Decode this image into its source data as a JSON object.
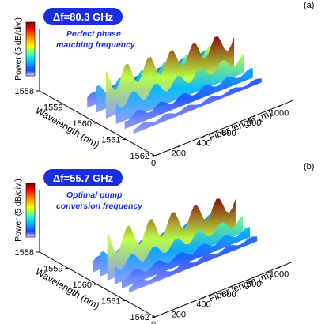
{
  "chart_data": [
    {
      "type": "surface-3d",
      "panel_label": "(a)",
      "badge": "Δf=80.3 GHz",
      "annotation": [
        "Perfect phase",
        "matching frequency"
      ],
      "colorbar_label": "Power (5 dB/div.)",
      "xlabel": "Fiber length (m)",
      "ylabel": "Wavelength (nm)",
      "x_ticks": [
        "0",
        "200",
        "400",
        "600",
        "800",
        "1000"
      ],
      "y_ticks": [
        "1558",
        "1559",
        "1560",
        "1561",
        "1562"
      ],
      "xlim": [
        0,
        1100
      ],
      "ylim": [
        1558,
        1562
      ],
      "ridges": [
        {
          "wavelength": 1559.3,
          "level": 0.28
        },
        {
          "wavelength": 1559.6,
          "level": 0.55
        },
        {
          "wavelength": 1559.95,
          "level": 1.0
        },
        {
          "wavelength": 1560.3,
          "level": 0.55
        },
        {
          "wavelength": 1560.6,
          "level": 0.28
        },
        {
          "wavelength": 1560.9,
          "level": 0.15
        }
      ]
    },
    {
      "type": "surface-3d",
      "panel_label": "(b)",
      "badge": "Δf=55.7 GHz",
      "annotation": [
        "Optimal pump",
        "conversion frequency"
      ],
      "colorbar_label": "Power (5 dB/div.)",
      "xlabel": "Fiber length (m)",
      "ylabel": "Wavelength (nm)",
      "x_ticks": [
        "0",
        "200",
        "400",
        "600",
        "800",
        "1000"
      ],
      "y_ticks": [
        "1558",
        "1559",
        "1560",
        "1561",
        "1562"
      ],
      "xlim": [
        0,
        1100
      ],
      "ylim": [
        1558,
        1562
      ],
      "ridges": [
        {
          "wavelength": 1559.5,
          "level": 0.3
        },
        {
          "wavelength": 1559.75,
          "level": 0.5
        },
        {
          "wavelength": 1560.0,
          "level": 1.0
        },
        {
          "wavelength": 1560.25,
          "level": 0.5
        },
        {
          "wavelength": 1560.5,
          "level": 0.3
        },
        {
          "wavelength": 1560.75,
          "level": 0.18
        }
      ]
    }
  ]
}
